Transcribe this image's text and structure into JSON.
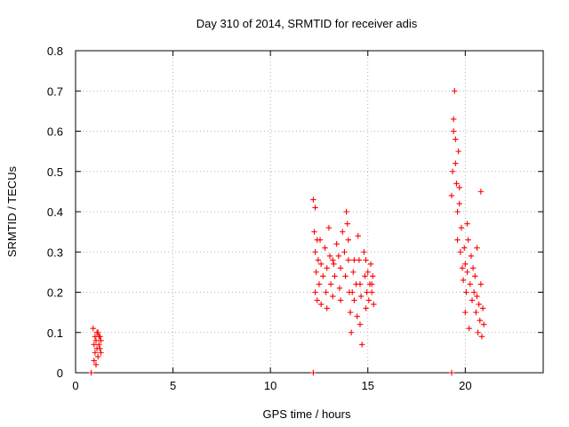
{
  "chart_data": {
    "type": "scatter",
    "title": "Day 310 of 2014, SRMTID for receiver adis",
    "xlabel": "GPS time / hours",
    "ylabel": "SRMTID / TECUs",
    "xlim": [
      0,
      24
    ],
    "ylim": [
      0,
      0.8
    ],
    "xticks": [
      "0",
      "5",
      "10",
      "15",
      "20"
    ],
    "yticks": [
      "0",
      "0.1",
      "0.2",
      "0.3",
      "0.4",
      "0.5",
      "0.6",
      "0.7",
      "0.8"
    ],
    "grid": true,
    "marker": "plus",
    "color": "#ff0000",
    "series": [
      {
        "name": "SRMTID",
        "points": [
          [
            0.8,
            0.0
          ],
          [
            12.2,
            0.0
          ],
          [
            19.3,
            0.0
          ],
          [
            0.9,
            0.11
          ],
          [
            0.95,
            0.07
          ],
          [
            1.0,
            0.09
          ],
          [
            1.0,
            0.05
          ],
          [
            1.05,
            0.08
          ],
          [
            1.1,
            0.06
          ],
          [
            1.1,
            0.1
          ],
          [
            1.15,
            0.04
          ],
          [
            1.2,
            0.07
          ],
          [
            1.2,
            0.09
          ],
          [
            1.25,
            0.06
          ],
          [
            1.3,
            0.08
          ],
          [
            1.3,
            0.05
          ],
          [
            0.95,
            0.03
          ],
          [
            1.05,
            0.02
          ],
          [
            1.15,
            0.1
          ],
          [
            1.25,
            0.09
          ],
          [
            12.2,
            0.43
          ],
          [
            12.25,
            0.35
          ],
          [
            12.3,
            0.3
          ],
          [
            12.3,
            0.2
          ],
          [
            12.35,
            0.25
          ],
          [
            12.4,
            0.18
          ],
          [
            12.45,
            0.28
          ],
          [
            12.5,
            0.22
          ],
          [
            12.55,
            0.33
          ],
          [
            12.6,
            0.27
          ],
          [
            12.7,
            0.24
          ],
          [
            12.8,
            0.31
          ],
          [
            12.85,
            0.2
          ],
          [
            12.9,
            0.26
          ],
          [
            13.0,
            0.36
          ],
          [
            13.05,
            0.29
          ],
          [
            13.1,
            0.22
          ],
          [
            13.2,
            0.19
          ],
          [
            13.25,
            0.27
          ],
          [
            13.3,
            0.24
          ],
          [
            13.4,
            0.32
          ],
          [
            13.5,
            0.29
          ],
          [
            13.55,
            0.21
          ],
          [
            13.6,
            0.26
          ],
          [
            13.7,
            0.35
          ],
          [
            13.8,
            0.3
          ],
          [
            13.85,
            0.24
          ],
          [
            13.9,
            0.4
          ],
          [
            13.95,
            0.37
          ],
          [
            14.0,
            0.28
          ],
          [
            14.05,
            0.2
          ],
          [
            14.1,
            0.15
          ],
          [
            14.15,
            0.1
          ],
          [
            14.2,
            0.2
          ],
          [
            14.25,
            0.25
          ],
          [
            14.3,
            0.18
          ],
          [
            14.4,
            0.22
          ],
          [
            14.45,
            0.14
          ],
          [
            14.5,
            0.34
          ],
          [
            14.55,
            0.28
          ],
          [
            14.6,
            0.12
          ],
          [
            14.65,
            0.19
          ],
          [
            14.7,
            0.07
          ],
          [
            14.8,
            0.3
          ],
          [
            14.85,
            0.24
          ],
          [
            14.9,
            0.28
          ],
          [
            14.95,
            0.2
          ],
          [
            15.0,
            0.25
          ],
          [
            15.05,
            0.18
          ],
          [
            15.1,
            0.22
          ],
          [
            15.15,
            0.27
          ],
          [
            15.2,
            0.2
          ],
          [
            15.25,
            0.24
          ],
          [
            15.3,
            0.17
          ],
          [
            12.3,
            0.41
          ],
          [
            12.4,
            0.33
          ],
          [
            12.6,
            0.17
          ],
          [
            12.9,
            0.16
          ],
          [
            13.2,
            0.28
          ],
          [
            13.6,
            0.18
          ],
          [
            14.0,
            0.33
          ],
          [
            14.3,
            0.28
          ],
          [
            14.6,
            0.22
          ],
          [
            14.9,
            0.16
          ],
          [
            15.2,
            0.22
          ],
          [
            19.3,
            0.44
          ],
          [
            19.35,
            0.5
          ],
          [
            19.4,
            0.63
          ],
          [
            19.45,
            0.7
          ],
          [
            19.5,
            0.58
          ],
          [
            19.55,
            0.47
          ],
          [
            19.6,
            0.4
          ],
          [
            19.6,
            0.33
          ],
          [
            19.65,
            0.55
          ],
          [
            19.7,
            0.42
          ],
          [
            19.75,
            0.3
          ],
          [
            19.8,
            0.36
          ],
          [
            19.85,
            0.26
          ],
          [
            19.9,
            0.23
          ],
          [
            19.95,
            0.31
          ],
          [
            20.0,
            0.15
          ],
          [
            20.0,
            0.27
          ],
          [
            20.05,
            0.2
          ],
          [
            20.1,
            0.25
          ],
          [
            20.15,
            0.33
          ],
          [
            20.2,
            0.11
          ],
          [
            20.25,
            0.22
          ],
          [
            20.3,
            0.29
          ],
          [
            20.35,
            0.18
          ],
          [
            20.4,
            0.26
          ],
          [
            20.45,
            0.2
          ],
          [
            20.5,
            0.24
          ],
          [
            20.55,
            0.15
          ],
          [
            20.6,
            0.19
          ],
          [
            20.65,
            0.1
          ],
          [
            20.7,
            0.17
          ],
          [
            20.75,
            0.13
          ],
          [
            20.8,
            0.45
          ],
          [
            20.8,
            0.22
          ],
          [
            20.85,
            0.09
          ],
          [
            20.9,
            0.16
          ],
          [
            20.95,
            0.12
          ],
          [
            19.4,
            0.6
          ],
          [
            19.5,
            0.52
          ],
          [
            19.7,
            0.46
          ],
          [
            20.1,
            0.37
          ],
          [
            20.6,
            0.31
          ]
        ]
      }
    ]
  }
}
